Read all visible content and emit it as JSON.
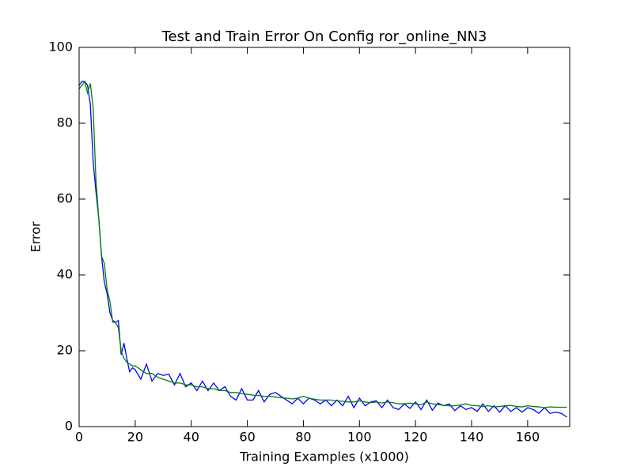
{
  "chart_data": {
    "type": "line",
    "title": "Test and Train Error On Config ror_online_NN3",
    "x_label": "Training Examples (x1000)",
    "y_label": "Error",
    "xlim": [
      0,
      175
    ],
    "ylim": [
      0,
      100
    ],
    "xticks": [
      0,
      20,
      40,
      60,
      80,
      100,
      120,
      140,
      160
    ],
    "yticks": [
      0,
      20,
      40,
      60,
      80,
      100
    ],
    "x": [
      0,
      1,
      2,
      3,
      4,
      5,
      6,
      7,
      8,
      9,
      10,
      11,
      12,
      13,
      14,
      15,
      16,
      17,
      18,
      19,
      20,
      22,
      24,
      26,
      28,
      30,
      32,
      34,
      36,
      38,
      40,
      42,
      44,
      46,
      48,
      50,
      52,
      54,
      56,
      58,
      60,
      62,
      64,
      66,
      68,
      70,
      72,
      74,
      76,
      78,
      80,
      82,
      84,
      86,
      88,
      90,
      92,
      94,
      96,
      98,
      100,
      102,
      104,
      106,
      108,
      110,
      112,
      114,
      116,
      118,
      120,
      122,
      124,
      126,
      128,
      130,
      132,
      134,
      136,
      138,
      140,
      142,
      144,
      146,
      148,
      150,
      152,
      154,
      156,
      158,
      160,
      162,
      164,
      166,
      168,
      170,
      172,
      174
    ],
    "series": [
      {
        "color": "#0000ff",
        "values": [
          90,
          91,
          91,
          90,
          85,
          70,
          62,
          55,
          45,
          38,
          35,
          30,
          28,
          27.5,
          28,
          19,
          22,
          18,
          14.5,
          15.5,
          15,
          12.5,
          16.5,
          12,
          14,
          13.5,
          13.8,
          11,
          14,
          10.5,
          11.5,
          9.5,
          12,
          9.5,
          11.5,
          9.5,
          10.5,
          8,
          7,
          10,
          7,
          7,
          9.5,
          6.5,
          8.5,
          9,
          8,
          7,
          6,
          7.5,
          6,
          7.5,
          7,
          6,
          7,
          5.5,
          7,
          5.5,
          8,
          5,
          7.5,
          5.5,
          6.5,
          6.8,
          5,
          7,
          5,
          4.5,
          6,
          4.8,
          6.5,
          4.5,
          7,
          4.3,
          6.2,
          5.5,
          6,
          4.2,
          5.5,
          4.5,
          5,
          4,
          6,
          4,
          5.5,
          3.8,
          5.5,
          4,
          5,
          3.8,
          5,
          4.5,
          3.5,
          5,
          3.5,
          3.8,
          3.5,
          2.5
        ]
      },
      {
        "color": "#008000",
        "values": [
          89,
          90,
          91,
          88,
          90.5,
          84,
          65,
          55,
          45,
          43,
          36,
          33,
          27.5,
          27.5,
          26,
          20,
          18,
          17,
          16.5,
          16,
          16,
          15,
          14,
          14,
          13,
          12.5,
          12,
          11.5,
          11.5,
          11,
          11,
          10.5,
          10.5,
          10,
          10,
          9.5,
          9.5,
          9,
          9,
          8.7,
          8.5,
          8.3,
          8.2,
          8,
          8,
          7.8,
          7.6,
          7.5,
          7.3,
          7.5,
          8,
          7.5,
          7.2,
          7,
          7,
          7,
          6.8,
          6.7,
          6.5,
          6.5,
          6.8,
          6.5,
          6.3,
          6.5,
          6.2,
          6.5,
          6.3,
          6,
          6,
          6.2,
          6,
          5.8,
          6.5,
          6,
          5.8,
          5.6,
          5.5,
          5.5,
          5.7,
          6,
          5.6,
          5.5,
          5.3,
          5.5,
          5.2,
          5.3,
          5.5,
          5.6,
          5.3,
          5.2,
          5.5,
          5.3,
          5.2,
          5,
          5.2,
          5.1,
          5.1,
          5.1
        ]
      }
    ]
  }
}
